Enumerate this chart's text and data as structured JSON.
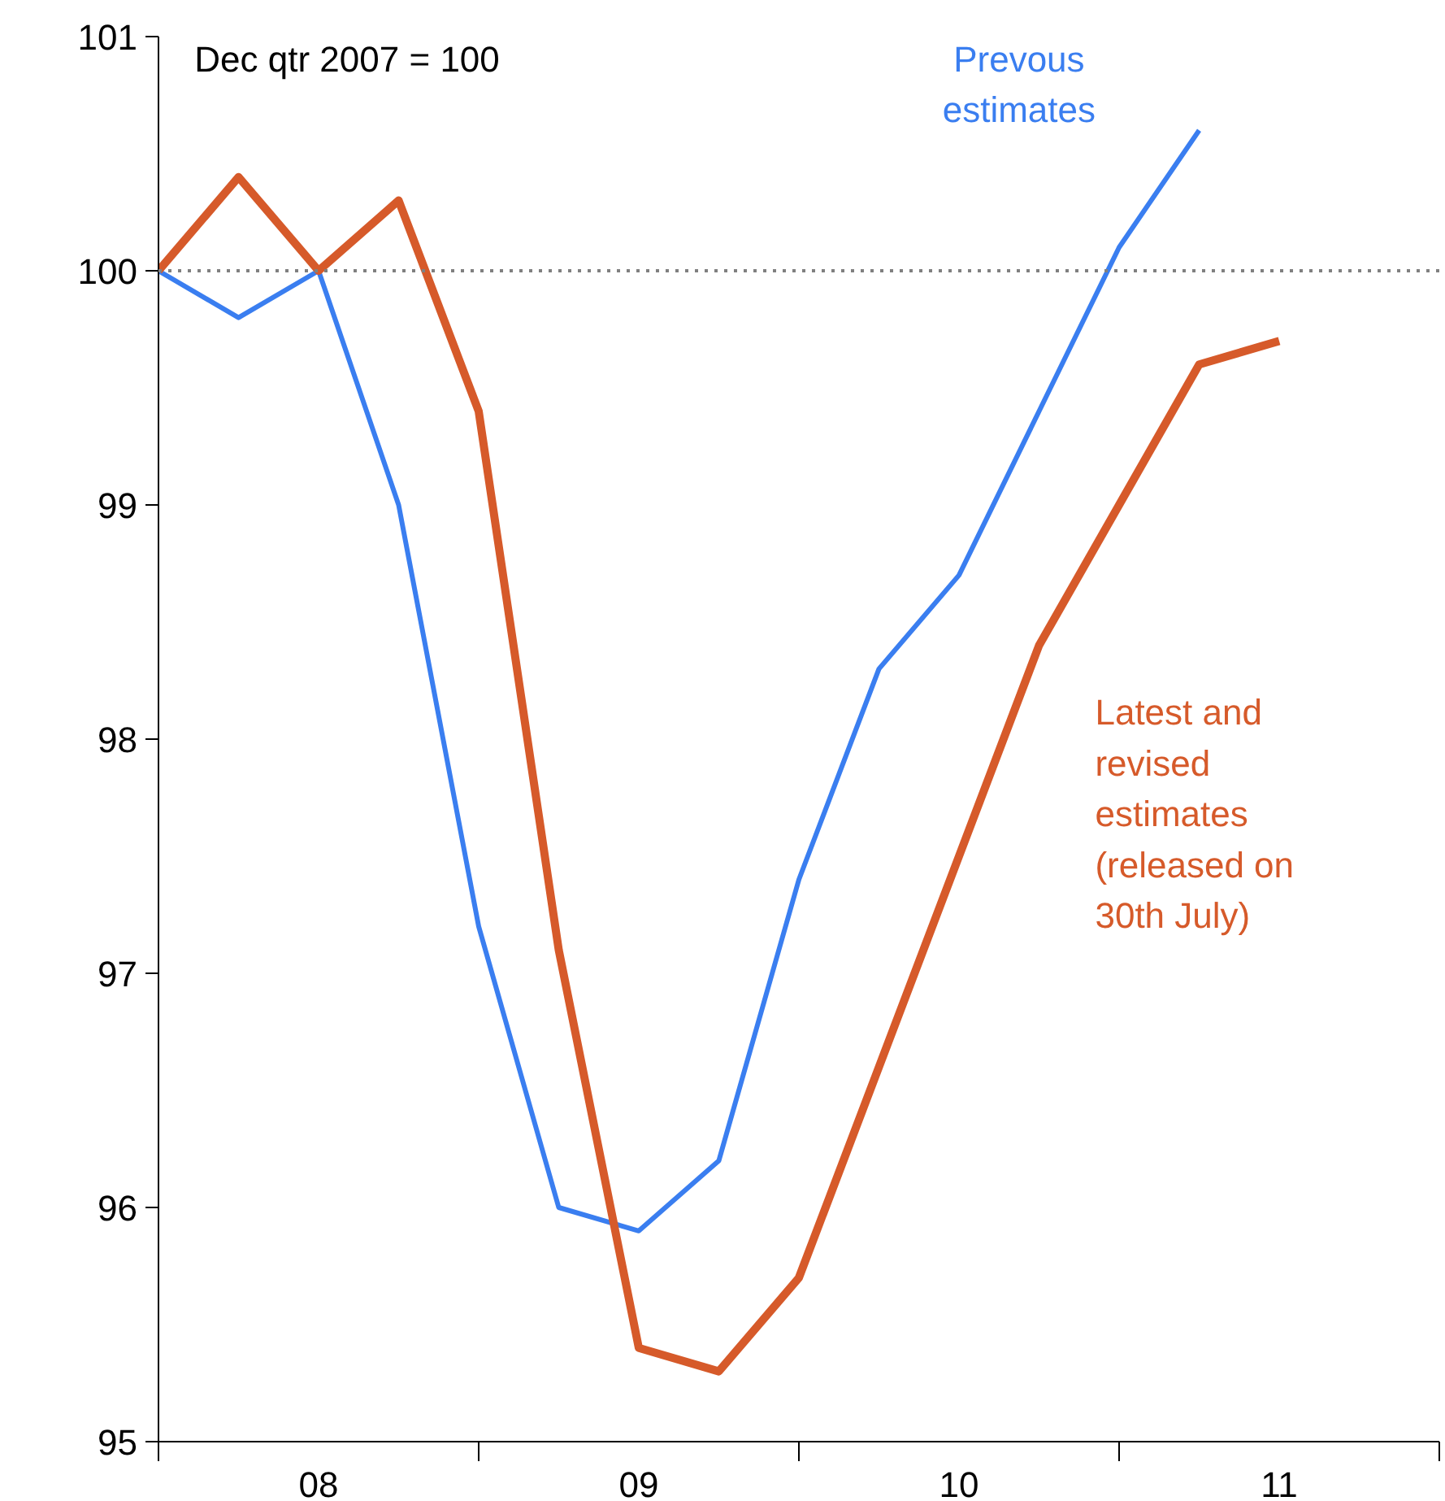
{
  "chart_data": {
    "type": "line",
    "annotations": [
      "Dec qtr 2007 = 100"
    ],
    "categories": [
      null,
      null,
      "08",
      null,
      null,
      null,
      "09",
      null,
      null,
      null,
      "10",
      null,
      null,
      null,
      "11"
    ],
    "ylim": [
      95,
      101
    ],
    "yticks": [
      95,
      96,
      97,
      98,
      99,
      100,
      101
    ],
    "grid": false,
    "marker": "none",
    "line_style": "solid",
    "ref_lines": [
      {
        "axis": "y",
        "value": 100,
        "label": null,
        "color": "#808080",
        "line_style": "dotted"
      }
    ],
    "series": [
      {
        "name": "Prevous\nestimates",
        "color": "#3a7ef0",
        "values": [
          100,
          99.8,
          100,
          99.0,
          97.2,
          96.0,
          95.9,
          96.2,
          97.4,
          98.3,
          98.7,
          99.4,
          100.1,
          100.6,
          null
        ]
      },
      {
        "name": "Latest and\nrevised\nestimates\n(released on\n30th July)",
        "color": "#d65a2a",
        "values": [
          100,
          100.4,
          100,
          100.3,
          99.4,
          97.1,
          95.4,
          95.3,
          95.7,
          96.6,
          97.5,
          98.4,
          99.0,
          99.6,
          99.7
        ]
      }
    ]
  }
}
